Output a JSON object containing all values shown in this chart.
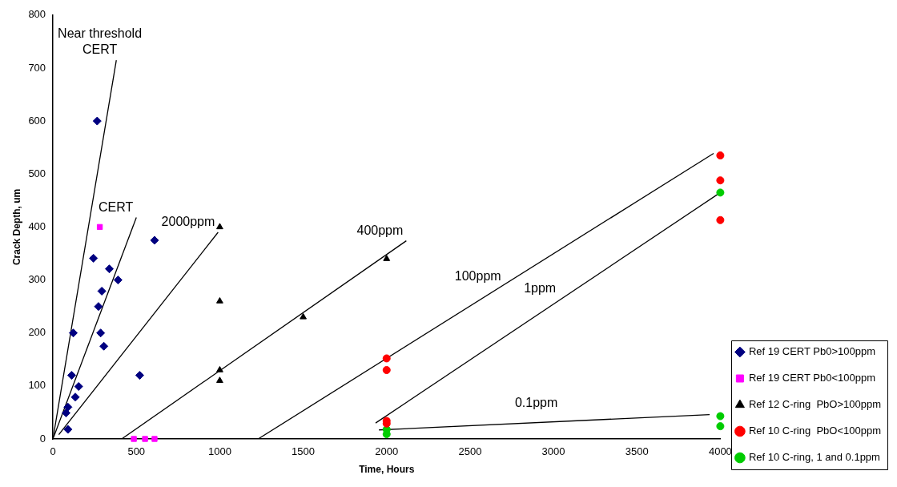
{
  "chart_data": {
    "type": "scatter",
    "xlabel": "Time, Hours",
    "ylabel": "Crack Depth, um",
    "xlim": [
      0,
      4000
    ],
    "xticks": [
      0,
      500,
      1000,
      1500,
      2000,
      2500,
      3000,
      3500,
      4000
    ],
    "ylim": [
      0,
      800
    ],
    "yticks": [
      0,
      100,
      200,
      300,
      400,
      500,
      600,
      700,
      800
    ],
    "grid": false,
    "legend": "bottom right",
    "series": [
      {
        "name": "Ref 19 CERT Pb0>100ppm",
        "color": "#000080",
        "marker": "diamond",
        "x": [
          265,
          243,
          338,
          390,
          293,
          273,
          609,
          122,
          286,
          305,
          112,
          520,
          154,
          134,
          90,
          79,
          90
        ],
        "values": [
          600,
          341,
          321,
          300,
          279,
          250,
          375,
          200,
          200,
          175,
          120,
          120,
          99,
          79,
          60,
          49,
          18
        ]
      },
      {
        "name": "Ref 19 CERT Pb0<100ppm",
        "color": "#ff00ff",
        "marker": "square",
        "x": [
          281,
          485,
          552,
          609
        ],
        "values": [
          400,
          0,
          0,
          0
        ]
      },
      {
        "name": "Ref 12 C-ring  PbO>100ppm",
        "color": "#000000",
        "marker": "triangle",
        "x": [
          1000,
          1000,
          1000,
          1000,
          1500,
          2000
        ],
        "values": [
          400,
          260,
          130,
          110,
          230,
          340
        ]
      },
      {
        "name": "Ref 10 C-ring  PbO<100ppm",
        "color": "#ff0000",
        "marker": "circle",
        "x": [
          2000,
          2000,
          2000,
          2000,
          4000,
          4000,
          4000
        ],
        "values": [
          152,
          130,
          34,
          29,
          535,
          488,
          413
        ]
      },
      {
        "name": "Ref 10 C-ring, 1 and 0.1ppm",
        "color": "#00cc00",
        "marker": "circle",
        "x": [
          2000,
          2000,
          4000,
          4000,
          4000
        ],
        "values": [
          18,
          9,
          465,
          43,
          24
        ]
      },
      {
        "name": "Near threshold\nCERT",
        "type": "line",
        "color": "#000000",
        "marker": "none",
        "x": [
          0,
          380
        ],
        "values": [
          0,
          715
        ]
      },
      {
        "name": "CERT",
        "type": "line",
        "color": "#000000",
        "marker": "none",
        "x": [
          0,
          500
        ],
        "values": [
          0,
          418
        ]
      },
      {
        "name": "2000ppm",
        "type": "line",
        "color": "#000000",
        "marker": "none",
        "x": [
          35,
          990
        ],
        "values": [
          8,
          390
        ]
      },
      {
        "name": "400ppm",
        "type": "line",
        "color": "#000000",
        "marker": "none",
        "x": [
          412,
          2118
        ],
        "values": [
          0,
          374
        ]
      },
      {
        "name": "100ppm",
        "type": "line",
        "color": "#000000",
        "marker": "none",
        "x": [
          1230,
          3960
        ],
        "values": [
          0,
          539
        ]
      },
      {
        "name": "1ppm",
        "type": "line",
        "color": "#000000",
        "marker": "none",
        "x": [
          1934,
          4000
        ],
        "values": [
          30,
          465
        ]
      },
      {
        "name": "0.1ppm",
        "type": "line",
        "color": "#000000",
        "marker": "none",
        "x": [
          1954,
          3936
        ],
        "values": [
          17,
          46
        ]
      }
    ]
  }
}
